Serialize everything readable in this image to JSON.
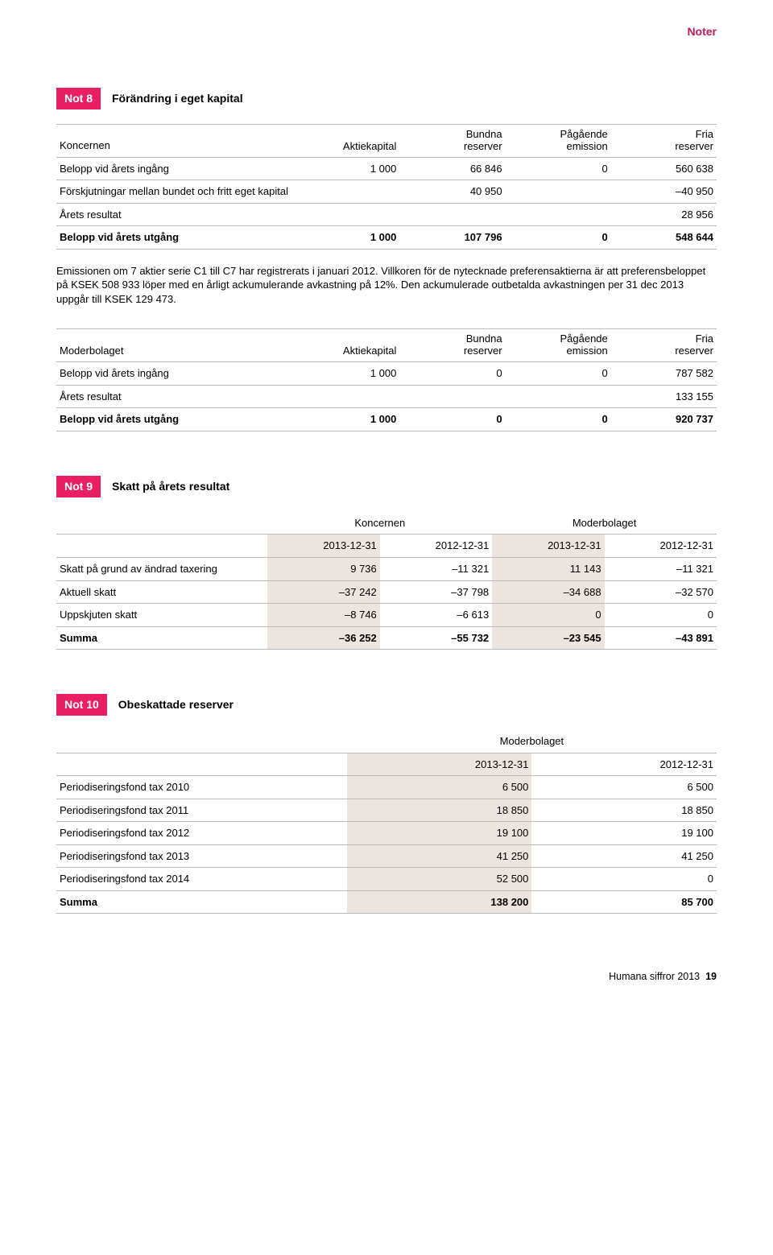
{
  "page_header": "Noter",
  "note8": {
    "badge": "Not 8",
    "title": "Förändring i eget kapital",
    "table1": {
      "cols": [
        "Koncernen",
        "Aktiekapital",
        "Bundna\nreserver",
        "Pågående\nemission",
        "Fria\nreserver"
      ],
      "rows": [
        {
          "label": "Belopp vid årets ingång",
          "c1": "1 000",
          "c2": "66 846",
          "c3": "0",
          "c4": "560 638"
        },
        {
          "label": "Förskjutningar mellan bundet och fritt eget kapital",
          "c1": "",
          "c2": "40 950",
          "c3": "",
          "c4": "–40 950"
        },
        {
          "label": "Årets resultat",
          "c1": "",
          "c2": "",
          "c3": "",
          "c4": "28 956"
        }
      ],
      "sum": {
        "label": "Belopp vid årets utgång",
        "c1": "1 000",
        "c2": "107 796",
        "c3": "0",
        "c4": "548 644"
      }
    },
    "body": "Emissionen om 7 aktier serie C1 till C7 har registrerats i januari 2012. Villkoren för de nytecknade preferensaktierna är att preferensbeloppet på KSEK 508 933 löper med en årligt ackumulerande avkastning på 12%. Den ackumulerade outbetalda avkastningen per 31 dec 2013 uppgår till KSEK 129 473.",
    "table2": {
      "cols": [
        "Moderbolaget",
        "Aktiekapital",
        "Bundna\nreserver",
        "Pågående\nemission",
        "Fria\nreserver"
      ],
      "rows": [
        {
          "label": "Belopp vid årets ingång",
          "c1": "1 000",
          "c2": "0",
          "c3": "0",
          "c4": "787 582"
        },
        {
          "label": "Årets resultat",
          "c1": "",
          "c2": "",
          "c3": "",
          "c4": "133 155"
        }
      ],
      "sum": {
        "label": "Belopp vid årets utgång",
        "c1": "1 000",
        "c2": "0",
        "c3": "0",
        "c4": "920 737"
      }
    }
  },
  "note9": {
    "badge": "Not 9",
    "title": "Skatt på årets resultat",
    "groups": [
      "Koncernen",
      "Moderbolaget"
    ],
    "dates": [
      "2013-12-31",
      "2012-12-31",
      "2013-12-31",
      "2012-12-31"
    ],
    "rows": [
      {
        "label": "Skatt på grund av ändrad taxering",
        "c1": "9 736",
        "c2": "–11 321",
        "c3": "11 143",
        "c4": "–11 321"
      },
      {
        "label": "Aktuell skatt",
        "c1": "–37 242",
        "c2": "–37 798",
        "c3": "–34 688",
        "c4": "–32 570"
      },
      {
        "label": "Uppskjuten skatt",
        "c1": "–8 746",
        "c2": "–6 613",
        "c3": "0",
        "c4": "0"
      }
    ],
    "sum": {
      "label": "Summa",
      "c1": "–36 252",
      "c2": "–55 732",
      "c3": "–23 545",
      "c4": "–43 891"
    }
  },
  "note10": {
    "badge": "Not 10",
    "title": "Obeskattade reserver",
    "group": "Moderbolaget",
    "dates": [
      "2013-12-31",
      "2012-12-31"
    ],
    "rows": [
      {
        "label": "Periodiseringsfond tax 2010",
        "c1": "6 500",
        "c2": "6 500"
      },
      {
        "label": "Periodiseringsfond tax 2011",
        "c1": "18 850",
        "c2": "18 850"
      },
      {
        "label": "Periodiseringsfond tax 2012",
        "c1": "19 100",
        "c2": "19 100"
      },
      {
        "label": "Periodiseringsfond tax 2013",
        "c1": "41 250",
        "c2": "41 250"
      },
      {
        "label": "Periodiseringsfond tax 2014",
        "c1": "52 500",
        "c2": "0"
      }
    ],
    "sum": {
      "label": "Summa",
      "c1": "138 200",
      "c2": "85 700"
    }
  },
  "footer": {
    "text": "Humana siffror 2013",
    "page": "19"
  },
  "colors": {
    "accent": "#e91e63",
    "header_text": "#c2185b",
    "shade": "#ece5df",
    "border": "#bbbbbb"
  }
}
